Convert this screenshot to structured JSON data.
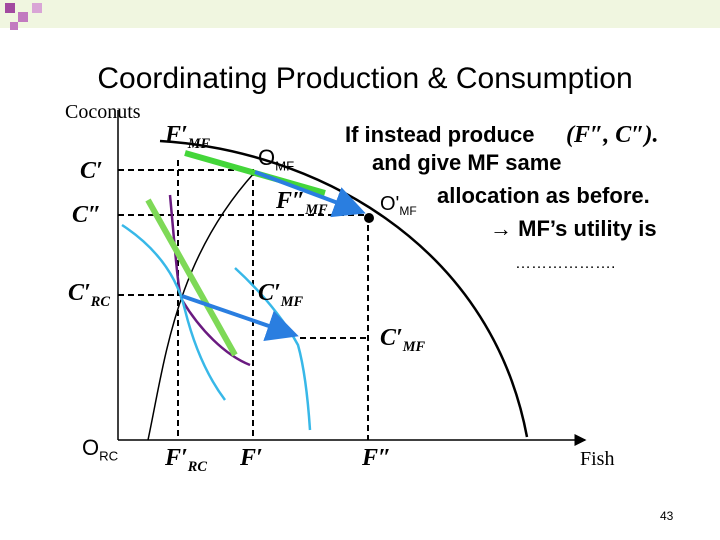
{
  "slide": {
    "title": "Coordinating Production & Consumption",
    "page_number": "43",
    "axes": {
      "y_label": "Coconuts",
      "x_label": "Fish"
    },
    "origins": {
      "mf": {
        "main": "O",
        "sub": "MF"
      },
      "mf_prime": {
        "main": "O'",
        "sub": "MF"
      },
      "rc": {
        "main": "O",
        "sub": "RC"
      }
    },
    "labels": [
      {
        "main": "F′",
        "sub": "MF"
      },
      {
        "main": "C′",
        "sub": ""
      },
      {
        "main": "C″",
        "sub": ""
      },
      {
        "main": "F″",
        "sub": "MF"
      },
      {
        "main": "C′",
        "sub": "RC"
      },
      {
        "main": "C′",
        "sub": "MF"
      },
      {
        "main": "C′",
        "sub": "MF"
      },
      {
        "main": "F′",
        "sub": "RC"
      },
      {
        "main": "F′",
        "sub": ""
      },
      {
        "main": "F″",
        "sub": ""
      }
    ],
    "text": {
      "line1": "If instead produce",
      "point": "(F″, C″).",
      "line2": "and give MF same",
      "line3": "allocation as before.",
      "line4": "→ MF’s utility is",
      "blank": "………………."
    }
  }
}
